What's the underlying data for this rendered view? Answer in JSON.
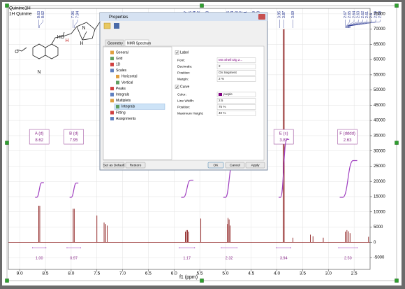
{
  "chart_data": {
    "type": "spectrum",
    "title": "Quinine1H",
    "subtitle": "1H Quinine",
    "xlabel": "f1 (ppm)",
    "xlim": [
      9.22,
      2.19
    ],
    "ylim": [
      76800,
      -8900
    ],
    "grid": true,
    "color": "#8b1a1a",
    "xticks": [
      {
        "value": 9,
        "label": "9.0"
      },
      8.5,
      {
        "value": 8,
        "label": "8.0"
      },
      7.5,
      {
        "value": 7,
        "label": "7.0"
      },
      6.5,
      {
        "value": 6,
        "label": "6.0"
      },
      5.5,
      {
        "value": 5,
        "label": "5.0"
      },
      4.5,
      {
        "value": 4,
        "label": "4.0"
      },
      3.5,
      {
        "value": 3,
        "label": "3.0"
      },
      2.5
    ],
    "yticks": [
      -5000,
      0,
      5000,
      10000,
      15000,
      20000,
      25000,
      30000,
      35000,
      40000,
      45000,
      50000,
      55000,
      60000,
      65000,
      70000,
      75000
    ],
    "x": [
      8.63,
      8.61,
      7.96,
      7.94,
      7.5,
      7.36,
      7.33,
      7.3,
      5.78,
      5.76,
      5.74,
      5.72,
      5.48,
      4.96,
      4.95,
      4.93,
      4.91,
      3.88,
      3.86,
      3.69,
      3.35,
      3.3,
      3.1,
      2.67,
      2.64,
      2.61,
      2.58,
      2.22
    ],
    "values": [
      12000,
      12000,
      11000,
      11000,
      8800,
      6500,
      6000,
      5500,
      3500,
      4000,
      4000,
      3500,
      7800,
      6000,
      8000,
      7500,
      5500,
      70000,
      70000,
      1500,
      2500,
      2000,
      1500,
      3500,
      4000,
      3600,
      3000,
      1800
    ],
    "peak_labels": [
      8.63,
      8.62,
      7.96,
      7.94,
      5.77,
      5.75,
      5.74,
      5.72,
      5.7,
      5.48,
      4.95,
      4.94,
      4.93,
      4.92,
      4.91,
      4.9,
      4.89,
      4.88,
      3.95,
      3.87,
      3.69,
      2.67,
      2.65,
      2.64,
      2.63,
      2.62,
      2.61,
      2.6,
      2.59,
      2.58
    ],
    "multiplets": [
      {
        "name": "A (d)",
        "shift": 8.62
      },
      {
        "name": "B (d)",
        "shift": 7.95
      },
      {
        "name": "E (s)",
        "shift": 3.87
      },
      {
        "name": "F (dddd)",
        "shift": 2.63
      }
    ],
    "integrals": [
      {
        "from": 8.67,
        "to": 8.57,
        "value": 1,
        "label": "1.00"
      },
      {
        "from": 8.0,
        "to": 7.9,
        "value": 0.97
      },
      {
        "from": 5.82,
        "to": 5.68,
        "value": 1.17
      },
      {
        "from": 5.0,
        "to": 4.86,
        "value": 2.32
      },
      {
        "from": 3.93,
        "to": 3.81,
        "value": 3.94
      },
      {
        "from": 2.72,
        "to": 2.52,
        "value": 2.5,
        "label": "2.50"
      }
    ]
  },
  "molecule": {
    "atoms": [
      "HO",
      "H",
      "N",
      "H",
      "O",
      "N"
    ]
  },
  "dialog": {
    "title": "Properties",
    "tabs": [
      "Geometry",
      "NMR Spectrum"
    ],
    "tree": [
      "General",
      "Grid",
      "1D",
      "Scales",
      "Horizontal",
      "Vertical",
      "Peaks",
      "Integrals",
      "Multiplets",
      "Integrals",
      "Fitting",
      "Assignments"
    ],
    "checkboxes": [
      "Label",
      "Curve"
    ],
    "label_fields": [
      [
        "Font:",
        "MS Shell Dlg 2..."
      ],
      [
        "Decimals:",
        "2"
      ],
      [
        "Position:",
        "On Segment"
      ],
      [
        "Margin:",
        "2 %"
      ]
    ],
    "curve_fields": [
      [
        "Color:",
        "purple"
      ],
      [
        "Line Width:",
        "2.5"
      ],
      [
        "Position:",
        "75 %"
      ],
      [
        "Maximum Height:",
        "40 %"
      ]
    ],
    "buttons": [
      "Set as Default",
      "Restore",
      "OK",
      "Cancel",
      "Apply"
    ]
  }
}
